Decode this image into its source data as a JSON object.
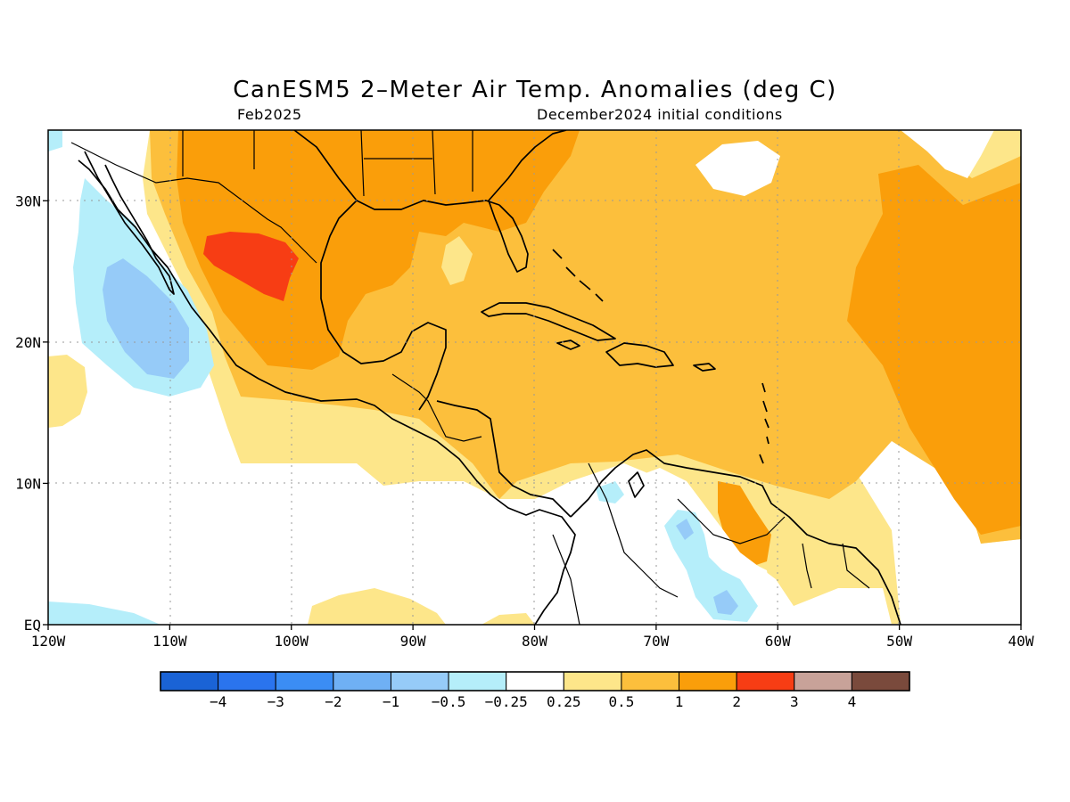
{
  "title": "CanESM5 2–Meter Air Temp. Anomalies (deg C)",
  "subtitle_left": "Feb2025",
  "subtitle_right": "December2024 initial conditions",
  "x_ticks": [
    "120W",
    "110W",
    "100W",
    "90W",
    "80W",
    "70W",
    "60W",
    "50W",
    "40W"
  ],
  "y_ticks": [
    "EQ",
    "10N",
    "20N",
    "30N"
  ],
  "map_extent": {
    "lon": [
      -120,
      -40
    ],
    "lat": [
      0,
      35
    ]
  },
  "colorbar": {
    "colors": [
      "#1a63d6",
      "#2a74ee",
      "#3b8df4",
      "#6fb0f4",
      "#96cbf8",
      "#b5eefa",
      "#ffffff",
      "#fde68a",
      "#fcbf3c",
      "#fa9e0a",
      "#f73d14",
      "#c8a299",
      "#7a4a3c"
    ],
    "labels": [
      "−4",
      "−3",
      "−2",
      "−1",
      "−0.5",
      "−0.25",
      "0.25",
      "0.5",
      "1",
      "2",
      "3",
      "4"
    ]
  },
  "anomaly_colors": {
    "neg_quarter": "#b5eefa",
    "neg_half": "#96cbf8",
    "neg_one": "#6fb0f4",
    "pos_quarter": "#fde68a",
    "pos_half": "#fcbf3c",
    "pos_one": "#fa9e0a",
    "pos_two": "#f73d14"
  }
}
